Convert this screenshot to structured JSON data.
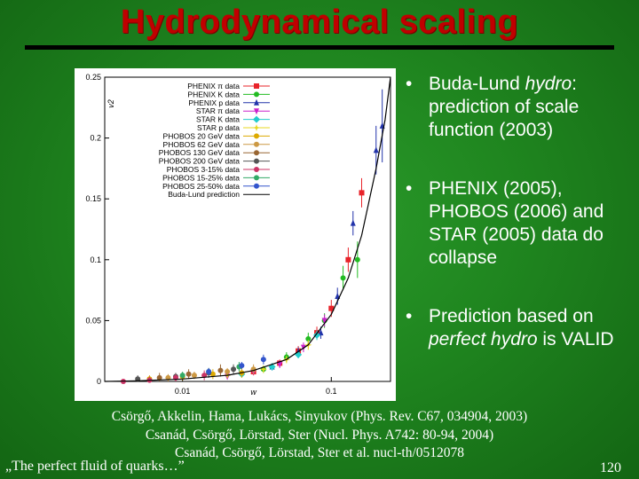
{
  "slide": {
    "title": "Hydrodynamical scaling",
    "bullets": [
      {
        "pre": "Buda-Lund ",
        "em": "hydro",
        "post": ": prediction of scale function (2003)"
      },
      {
        "pre": "PHENIX (2005), PHOBOS (2006) and STAR (2005) data do collapse",
        "em": "",
        "post": ""
      },
      {
        "pre": "Prediction based on ",
        "em": "perfect hydro",
        "post": " is VALID"
      }
    ],
    "citations": [
      "Csörgő, Akkelin, Hama, Lukács, Sinyukov (Phys. Rev. C67, 034904, 2003)",
      "Csanád, Csörgő, Lörstad, Ster (Nucl. Phys. A742: 80-94, 2004)",
      "Csanád, Csörgő, Lörstad, Ster et al. nucl-th/0512078"
    ],
    "footer_left": "„The perfect fluid of quarks…”",
    "page_number": "120",
    "bullet_symbol": "•"
  },
  "colors": {
    "title": "#c00000",
    "background": "#1f851f",
    "text": "#ffffff"
  },
  "chart_data": {
    "type": "scatter",
    "title": "",
    "xlabel": "w",
    "ylabel": "v2",
    "x_scale": "log",
    "xlim": [
      0.003,
      0.25
    ],
    "ylim": [
      0,
      0.25
    ],
    "yticks": [
      "0",
      "0.05",
      "0.1",
      "0.15",
      "0.2",
      "0.25"
    ],
    "xticks": [
      "0.01",
      "0.1"
    ],
    "legend_position": "top-left",
    "series": [
      {
        "name": "PHENIX π data",
        "color": "#e8232a",
        "marker": "square",
        "x": [
          0.03,
          0.045,
          0.06,
          0.08,
          0.1,
          0.13,
          0.16
        ],
        "y": [
          0.008,
          0.015,
          0.025,
          0.04,
          0.06,
          0.1,
          0.155
        ],
        "err": [
          0.003,
          0.003,
          0.004,
          0.005,
          0.007,
          0.01,
          0.012
        ]
      },
      {
        "name": "PHENIX K data",
        "color": "#22bb22",
        "marker": "circle",
        "x": [
          0.035,
          0.05,
          0.07,
          0.09,
          0.12,
          0.15
        ],
        "y": [
          0.01,
          0.02,
          0.035,
          0.05,
          0.085,
          0.1
        ],
        "err": [
          0.003,
          0.004,
          0.005,
          0.006,
          0.01,
          0.015
        ]
      },
      {
        "name": "PHENIX p data",
        "color": "#2233aa",
        "marker": "triangle",
        "x": [
          0.04,
          0.06,
          0.085,
          0.11,
          0.14,
          0.2,
          0.22
        ],
        "y": [
          0.012,
          0.024,
          0.04,
          0.07,
          0.13,
          0.19,
          0.21
        ],
        "err": [
          0.003,
          0.004,
          0.005,
          0.007,
          0.01,
          0.02,
          0.03
        ]
      },
      {
        "name": "STAR π data",
        "color": "#cc22cc",
        "marker": "triangle-down",
        "x": [
          0.02,
          0.03,
          0.045,
          0.065,
          0.09
        ],
        "y": [
          0.004,
          0.008,
          0.014,
          0.028,
          0.05
        ],
        "err": [
          0.002,
          0.002,
          0.003,
          0.004,
          0.005
        ]
      },
      {
        "name": "STAR K data",
        "color": "#22cccc",
        "marker": "diamond",
        "x": [
          0.025,
          0.04,
          0.06,
          0.08
        ],
        "y": [
          0.006,
          0.012,
          0.022,
          0.038
        ],
        "err": [
          0.002,
          0.003,
          0.003,
          0.004
        ]
      },
      {
        "name": "STAR p data",
        "color": "#e8d820",
        "marker": "star",
        "x": [
          0.02,
          0.035,
          0.05,
          0.07
        ],
        "y": [
          0.005,
          0.01,
          0.018,
          0.03
        ],
        "err": [
          0.002,
          0.003,
          0.003,
          0.004
        ]
      },
      {
        "name": "PHOBOS 20 GeV data",
        "color": "#ddaa00",
        "marker": "circle",
        "x": [
          0.006,
          0.01,
          0.016,
          0.025
        ],
        "y": [
          0.002,
          0.004,
          0.006,
          0.007
        ],
        "err": [
          0.003,
          0.003,
          0.004,
          0.004
        ]
      },
      {
        "name": "PHOBOS 62 GeV data",
        "color": "#cc9944",
        "marker": "circle",
        "x": [
          0.008,
          0.012,
          0.02,
          0.03
        ],
        "y": [
          0.003,
          0.005,
          0.008,
          0.01
        ],
        "err": [
          0.003,
          0.003,
          0.003,
          0.004
        ]
      },
      {
        "name": "PHOBOS 130 GeV data",
        "color": "#996633",
        "marker": "circle",
        "x": [
          0.007,
          0.011,
          0.018
        ],
        "y": [
          0.003,
          0.006,
          0.009
        ],
        "err": [
          0.004,
          0.004,
          0.005
        ]
      },
      {
        "name": "PHOBOS 200 GeV data",
        "color": "#555555",
        "marker": "circle",
        "x": [
          0.005,
          0.009,
          0.015,
          0.022
        ],
        "y": [
          0.002,
          0.004,
          0.007,
          0.01
        ],
        "err": [
          0.003,
          0.003,
          0.004,
          0.004
        ]
      },
      {
        "name": "PHOBOS 3-15% data",
        "color": "#cc3366",
        "marker": "circle",
        "x": [
          0.004,
          0.006,
          0.009,
          0.014
        ],
        "y": [
          0.0,
          0.001,
          0.003,
          0.005
        ],
        "err": [
          0.002,
          0.003,
          0.003,
          0.004
        ]
      },
      {
        "name": "PHOBOS 15-25% data",
        "color": "#33aa66",
        "marker": "circle",
        "x": [
          0.01,
          0.015,
          0.024
        ],
        "y": [
          0.005,
          0.008,
          0.012
        ],
        "err": [
          0.003,
          0.003,
          0.004
        ]
      },
      {
        "name": "PHOBOS 25-50% data",
        "color": "#3355cc",
        "marker": "circle",
        "x": [
          0.015,
          0.025,
          0.035
        ],
        "y": [
          0.008,
          0.013,
          0.018
        ],
        "err": [
          0.003,
          0.003,
          0.004
        ]
      }
    ],
    "prediction": {
      "name": "Buda-Lund prediction",
      "color": "#000000",
      "x": [
        0.003,
        0.005,
        0.01,
        0.02,
        0.03,
        0.05,
        0.07,
        0.1,
        0.13,
        0.16,
        0.2,
        0.23,
        0.25
      ],
      "y": [
        0.0,
        0.0005,
        0.002,
        0.005,
        0.009,
        0.018,
        0.03,
        0.055,
        0.085,
        0.12,
        0.175,
        0.215,
        0.25
      ]
    }
  }
}
